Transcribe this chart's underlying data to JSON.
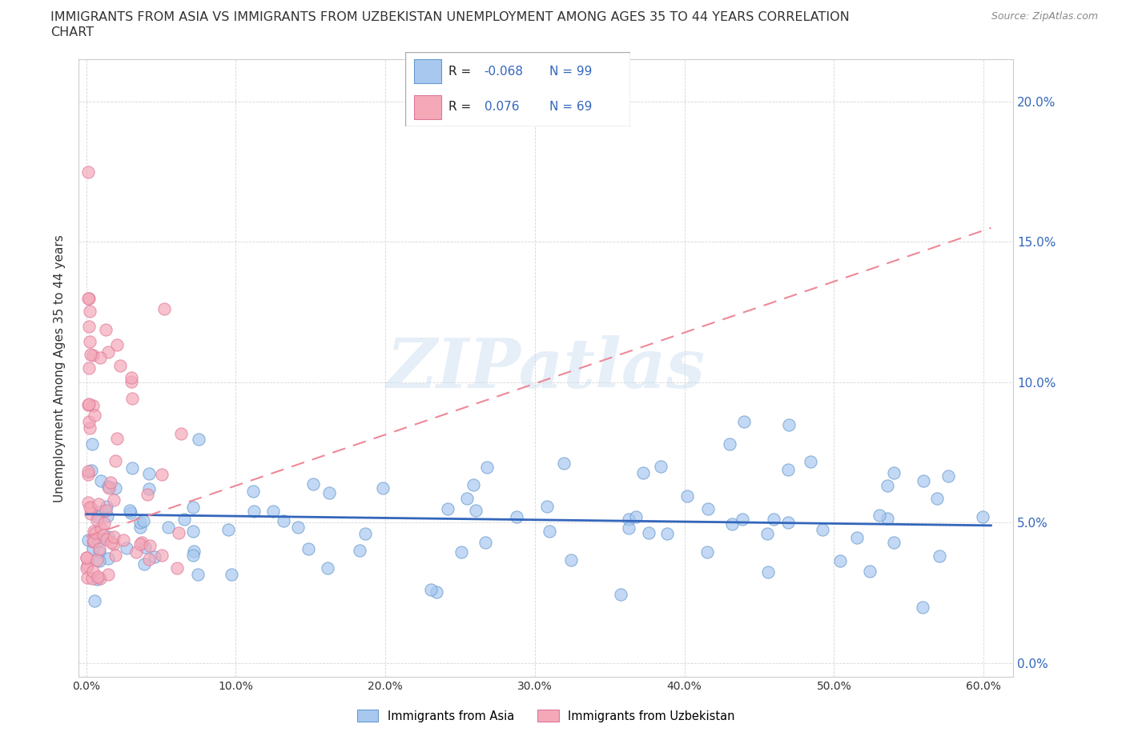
{
  "title_line1": "IMMIGRANTS FROM ASIA VS IMMIGRANTS FROM UZBEKISTAN UNEMPLOYMENT AMONG AGES 35 TO 44 YEARS CORRELATION",
  "title_line2": "CHART",
  "source": "Source: ZipAtlas.com",
  "ylabel": "Unemployment Among Ages 35 to 44 years",
  "xlim": [
    -0.005,
    0.62
  ],
  "ylim": [
    -0.005,
    0.215
  ],
  "x_ticks": [
    0.0,
    0.1,
    0.2,
    0.3,
    0.4,
    0.5,
    0.6
  ],
  "x_tick_labels": [
    "0.0%",
    "10.0%",
    "20.0%",
    "30.0%",
    "40.0%",
    "50.0%",
    "60.0%"
  ],
  "y_ticks": [
    0.0,
    0.05,
    0.1,
    0.15,
    0.2
  ],
  "y_tick_labels": [
    "0.0%",
    "5.0%",
    "10.0%",
    "15.0%",
    "20.0%"
  ],
  "asia_color": "#a8c8f0",
  "asia_edge_color": "#6699cc",
  "uzbekistan_color": "#f4a8b8",
  "uzbekistan_edge_color": "#dd7799",
  "asia_R": -0.068,
  "asia_N": 99,
  "uzbekistan_R": 0.076,
  "uzbekistan_N": 69,
  "trend_asia_color": "#3366bb",
  "trend_uzbekistan_color": "#ee8899",
  "watermark": "ZIPatlas",
  "legend_label_asia": "Immigrants from Asia",
  "legend_label_uzbekistan": "Immigrants from Uzbekistan",
  "legend_R_color": "#3366bb",
  "legend_text_color": "#222222",
  "ytick_color": "#3366bb",
  "xtick_color": "#333333",
  "asia_trend_start_y": 0.053,
  "asia_trend_end_y": 0.049,
  "uzbek_trend_start_y": 0.045,
  "uzbek_trend_end_y": 0.155
}
